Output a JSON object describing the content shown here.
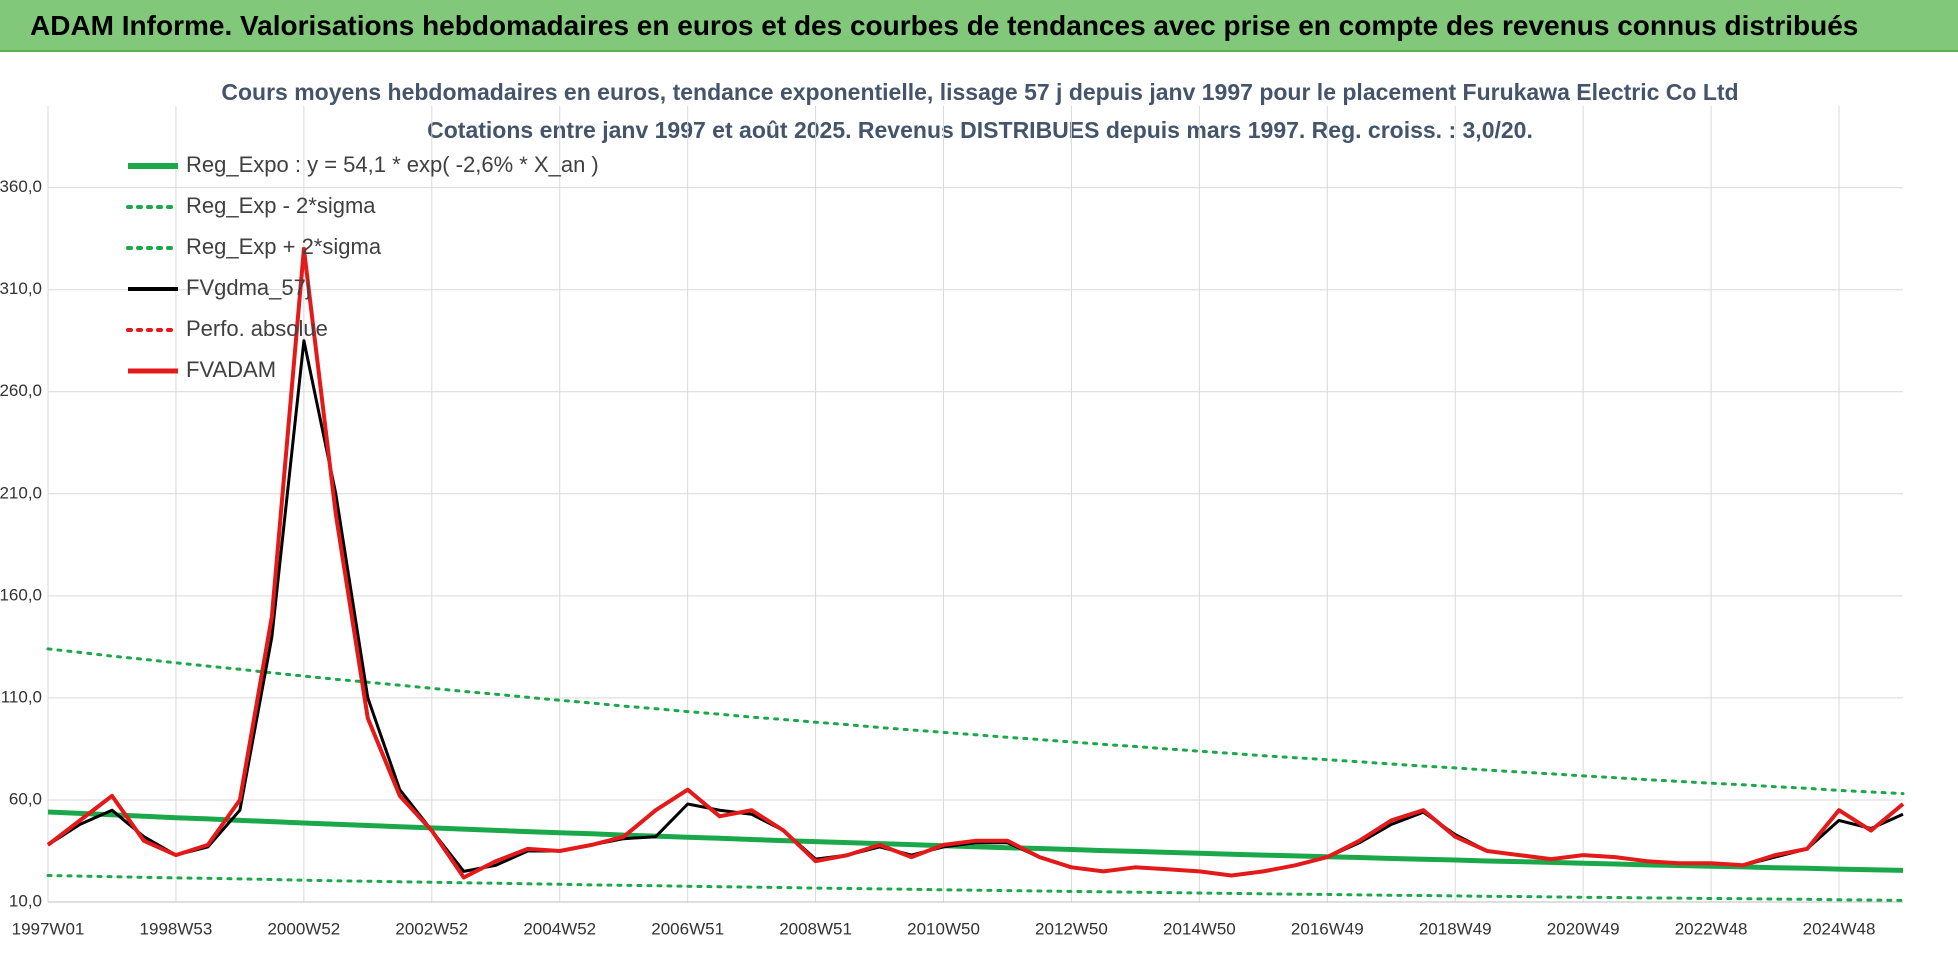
{
  "header": "ADAM Informe. Valorisations hebdomadaires en euros et des courbes de tendances avec prise en compte des revenus connus distribués",
  "chart_data": {
    "type": "line",
    "title": "Cours moyens hebdomadaires en euros, tendance exponentielle, lissage 57 j depuis janv 1997  pour le placement Furukawa Electric Co Ltd",
    "subtitle": "Cotations entre janv 1997 et août 2025.  Revenus DISTRIBUES depuis mars 1997. Reg. croiss. : 3,0/20.",
    "categories": [
      "1997W01",
      null,
      null,
      null,
      "1998W53",
      null,
      null,
      null,
      "2000W52",
      null,
      null,
      null,
      "2002W52",
      null,
      null,
      null,
      "2004W52",
      null,
      null,
      null,
      "2006W51",
      null,
      null,
      null,
      "2008W51",
      null,
      null,
      null,
      "2010W50",
      null,
      null,
      null,
      "2012W50",
      null,
      null,
      null,
      "2014W50",
      null,
      null,
      null,
      "2016W49",
      null,
      null,
      null,
      "2018W49",
      null,
      null,
      null,
      "2020W49",
      null,
      null,
      null,
      "2022W48",
      null,
      null,
      null,
      "2024W48",
      null,
      null
    ],
    "ylim": [
      10,
      400
    ],
    "yticks": [
      {
        "value": 10,
        "label": "10,0"
      },
      {
        "value": 60,
        "label": "60,0"
      },
      {
        "value": 110,
        "label": "110,0"
      },
      {
        "value": 160,
        "label": "160,0"
      },
      {
        "value": 210,
        "label": "210,0"
      },
      {
        "value": 260,
        "label": "260,0"
      },
      {
        "value": 310,
        "label": "310,0"
      },
      {
        "value": 360,
        "label": "360,0"
      }
    ],
    "grid": true,
    "legend": "top-left",
    "series": [
      {
        "name": "Reg_Expo : y = 54,1 * exp( -2,6% *  X_an )",
        "color": "#1aa84a",
        "style": "solid",
        "width": 5,
        "values": [
          54.1,
          53.4,
          52.7,
          52.0,
          51.3,
          50.7,
          50.0,
          49.4,
          48.7,
          48.1,
          47.5,
          46.9,
          46.3,
          45.7,
          45.1,
          44.5,
          43.9,
          43.4,
          42.8,
          42.3,
          41.7,
          41.2,
          40.6,
          40.1,
          39.6,
          39.1,
          38.6,
          38.1,
          37.6,
          37.1,
          36.6,
          36.2,
          35.7,
          35.2,
          34.8,
          34.3,
          33.9,
          33.4,
          33.0,
          32.6,
          32.2,
          31.8,
          31.3,
          30.9,
          30.6,
          30.1,
          29.8,
          29.4,
          29.0,
          28.6,
          28.2,
          27.9,
          27.5,
          27.2,
          26.8,
          26.5,
          26.1,
          25.8,
          25.5
        ]
      },
      {
        "name": "Reg_Exp - 2*sigma",
        "color": "#1aa84a",
        "style": "dotted",
        "width": 3,
        "values": [
          23,
          22.7,
          22.4,
          22.1,
          21.8,
          21.6,
          21.3,
          21.0,
          20.7,
          20.4,
          20.2,
          19.9,
          19.7,
          19.4,
          19.2,
          18.9,
          18.7,
          18.4,
          18.2,
          18.0,
          17.7,
          17.5,
          17.3,
          17.1,
          16.8,
          16.6,
          16.4,
          16.2,
          16.0,
          15.8,
          15.6,
          15.4,
          15.2,
          15.0,
          14.8,
          14.6,
          14.4,
          14.2,
          14.0,
          13.8,
          13.7,
          13.5,
          13.3,
          13.2,
          13.0,
          12.8,
          12.7,
          12.5,
          12.3,
          12.2,
          12.0,
          11.9,
          11.7,
          11.6,
          11.4,
          11.3,
          11.1,
          11.0,
          10.8
        ]
      },
      {
        "name": "Reg_Exp + 2*sigma",
        "color": "#1aa84a",
        "style": "dotted",
        "width": 3,
        "values": [
          134,
          132.3,
          130.5,
          128.9,
          127.2,
          125.6,
          124.0,
          122.3,
          120.7,
          119.1,
          117.7,
          116.2,
          114.7,
          113.2,
          111.8,
          110.3,
          108.8,
          107.5,
          106.0,
          104.7,
          103.3,
          102.0,
          100.6,
          99.4,
          98.1,
          96.9,
          95.5,
          94.3,
          93.1,
          91.9,
          90.7,
          89.6,
          88.4,
          87.2,
          86.2,
          85.0,
          83.9,
          82.8,
          81.7,
          80.7,
          79.7,
          78.7,
          77.6,
          76.6,
          75.7,
          74.6,
          73.7,
          72.8,
          71.8,
          70.9,
          69.9,
          69.1,
          68.2,
          67.4,
          66.5,
          65.7,
          64.7,
          63.9,
          63.1
        ]
      },
      {
        "name": "FVgdma_57j",
        "color": "#000000",
        "style": "solid",
        "width": 3,
        "values": [
          38,
          48,
          55,
          42,
          33,
          37,
          55,
          140,
          285,
          210,
          110,
          65,
          45,
          25,
          28,
          35,
          35,
          38,
          41,
          42,
          58,
          55,
          53,
          45,
          31,
          33,
          37,
          33,
          37,
          39,
          39,
          32,
          27,
          25,
          27,
          26,
          25,
          23,
          25,
          28,
          32,
          39,
          48,
          54,
          43,
          35,
          33,
          31,
          33,
          32,
          30,
          29,
          29,
          28,
          32,
          36,
          50,
          46,
          53
        ]
      },
      {
        "name": "Perfo. absolue",
        "color": "#e41a1a",
        "style": "dotted",
        "width": 3,
        "values": [
          null,
          null,
          null,
          null,
          null,
          null,
          null,
          null,
          null,
          null,
          null,
          null,
          null,
          null,
          null,
          null,
          null,
          null,
          null,
          null,
          null,
          null,
          null,
          null,
          null,
          null,
          null,
          null,
          null,
          null,
          null,
          null,
          null,
          null,
          null,
          null,
          null,
          null,
          null,
          null,
          null,
          null,
          null,
          null,
          null,
          null,
          null,
          null,
          null,
          null,
          null,
          null,
          null,
          null,
          null,
          null,
          null,
          null,
          null
        ]
      },
      {
        "name": "FVADAM",
        "color": "#e41a1a",
        "style": "solid",
        "width": 4,
        "values": [
          38,
          50,
          62,
          40,
          33,
          38,
          60,
          150,
          330,
          200,
          100,
          62,
          45,
          22,
          30,
          36,
          35,
          38,
          42,
          55,
          65,
          52,
          55,
          45,
          30,
          33,
          38,
          32,
          38,
          40,
          40,
          32,
          27,
          25,
          27,
          26,
          25,
          23,
          25,
          28,
          32,
          40,
          50,
          55,
          42,
          35,
          33,
          31,
          33,
          32,
          30,
          29,
          29,
          28,
          33,
          36,
          55,
          45,
          58
        ]
      }
    ]
  }
}
